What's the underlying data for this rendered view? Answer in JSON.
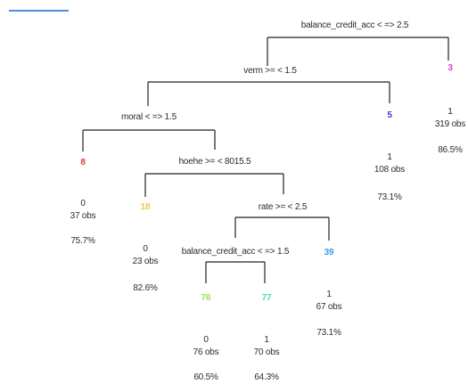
{
  "header_line_color": "#4a90d9",
  "line_color": "#222222",
  "splits": {
    "s1": "balance_credit_acc < => 2.5",
    "s2": "verm >= < 1.5",
    "s3": "moral < => 1.5",
    "s4": "hoehe >= < 8015.5",
    "s5": "rate >= < 2.5",
    "s6": "balance_credit_acc < => 1.5"
  },
  "leaves": {
    "n3": {
      "id": "3",
      "color": "#d43fd4",
      "label": "1",
      "obs": "319 obs",
      "pct": "86.5%"
    },
    "n5": {
      "id": "5",
      "color": "#3a3ad8",
      "label": "1",
      "obs": "108 obs",
      "pct": "73.1%"
    },
    "n8": {
      "id": "8",
      "color": "#e8333b",
      "label": "0",
      "obs": "37 obs",
      "pct": "75.7%"
    },
    "n18": {
      "id": "18",
      "color": "#f0c64a",
      "label": "0",
      "obs": "23 obs",
      "pct": "82.6%"
    },
    "n39": {
      "id": "39",
      "color": "#3a9ee8",
      "label": "1",
      "obs": "67 obs",
      "pct": "73.1%"
    },
    "n76": {
      "id": "76",
      "color": "#9ce04a",
      "label": "0",
      "obs": "76 obs",
      "pct": "60.5%"
    },
    "n77": {
      "id": "77",
      "color": "#4ae0b4",
      "label": "1",
      "obs": "70 obs",
      "pct": "64.3%"
    }
  }
}
